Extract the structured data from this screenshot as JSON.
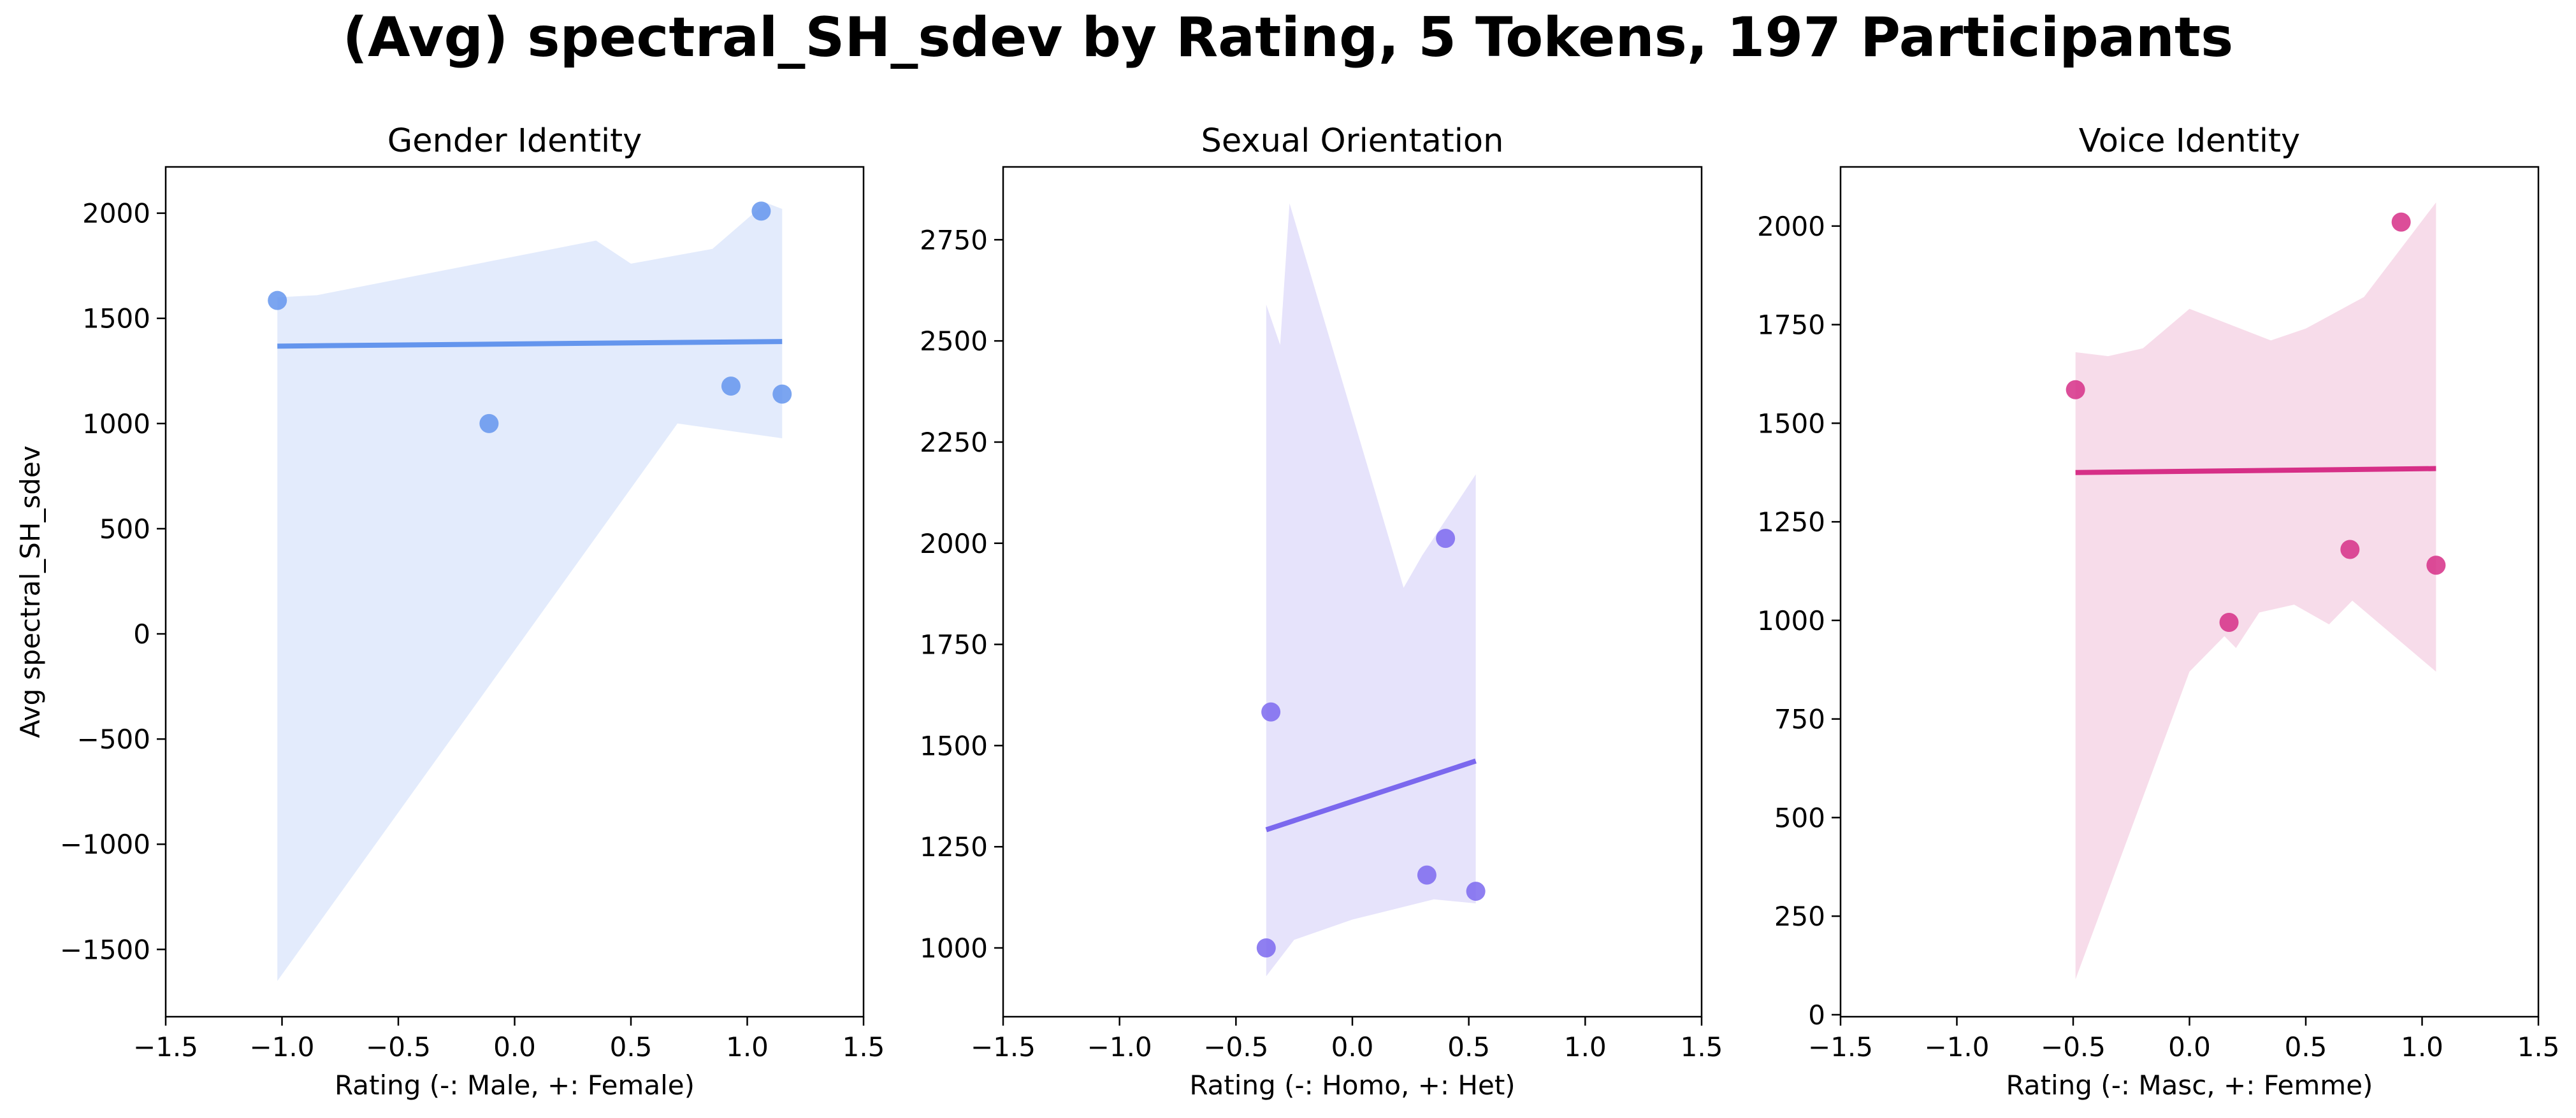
{
  "figure_title": "(Avg) spectral_SH_sdev by Rating, 5 Tokens, 197 Participants",
  "chart_data": [
    {
      "type": "scatter",
      "title": "Gender Identity",
      "xlabel": "Rating (-: Male, +: Female)",
      "ylabel": "Avg spectral_SH_sdev",
      "xlim": [
        -1.5,
        1.5
      ],
      "ylim": [
        -1820,
        2220
      ],
      "xticks": [
        -1.5,
        -1.0,
        -0.5,
        0.0,
        0.5,
        1.0,
        1.5
      ],
      "xtick_labels": [
        "−1.5",
        "−1.0",
        "−0.5",
        "0.0",
        "0.5",
        "1.0",
        "1.5"
      ],
      "yticks": [
        -1500,
        -1000,
        -500,
        0,
        500,
        1000,
        1500,
        2000
      ],
      "ytick_labels": [
        "−1500",
        "−1000",
        "−500",
        "0",
        "500",
        "1000",
        "1500",
        "2000"
      ],
      "color": "#6495ED",
      "band_color": "#e3ebfc",
      "points": [
        {
          "x": -1.02,
          "y": 1585
        },
        {
          "x": -0.11,
          "y": 1000
        },
        {
          "x": 0.93,
          "y": 1178
        },
        {
          "x": 1.06,
          "y": 2010
        },
        {
          "x": 1.15,
          "y": 1140
        }
      ],
      "fit_line": [
        {
          "x": -1.02,
          "y": 1368
        },
        {
          "x": 1.15,
          "y": 1390
        }
      ],
      "confidence_band": {
        "upper": [
          [
            -1.02,
            1600
          ],
          [
            -0.85,
            1610
          ],
          [
            0.35,
            1870
          ],
          [
            0.5,
            1760
          ],
          [
            0.6,
            1780
          ],
          [
            0.85,
            1830
          ],
          [
            1.08,
            2050
          ],
          [
            1.15,
            2020
          ]
        ],
        "lower": [
          [
            1.15,
            930
          ],
          [
            0.7,
            1000
          ],
          [
            -1.02,
            -1650
          ]
        ]
      }
    },
    {
      "type": "scatter",
      "title": "Sexual Orientation",
      "xlabel": "Rating (-: Homo, +: Het)",
      "ylabel": "",
      "xlim": [
        -1.5,
        1.5
      ],
      "ylim": [
        830,
        2930
      ],
      "xticks": [
        -1.5,
        -1.0,
        -0.5,
        0.0,
        0.5,
        1.0,
        1.5
      ],
      "xtick_labels": [
        "−1.5",
        "−1.0",
        "−0.5",
        "0.0",
        "0.5",
        "1.0",
        "1.5"
      ],
      "yticks": [
        1000,
        1250,
        1500,
        1750,
        2000,
        2250,
        2500,
        2750
      ],
      "ytick_labels": [
        "1000",
        "1250",
        "1500",
        "1750",
        "2000",
        "2250",
        "2500",
        "2750"
      ],
      "color": "#7B68EE",
      "band_color": "#e6e3fb",
      "points": [
        {
          "x": -0.37,
          "y": 1000
        },
        {
          "x": -0.35,
          "y": 1583
        },
        {
          "x": 0.32,
          "y": 1180
        },
        {
          "x": 0.4,
          "y": 2012
        },
        {
          "x": 0.53,
          "y": 1140
        }
      ],
      "fit_line": [
        {
          "x": -0.37,
          "y": 1292
        },
        {
          "x": 0.53,
          "y": 1462
        }
      ],
      "confidence_band": {
        "upper": [
          [
            -0.37,
            2590
          ],
          [
            -0.31,
            2490
          ],
          [
            -0.27,
            2840
          ],
          [
            0.22,
            1890
          ],
          [
            0.3,
            1970
          ],
          [
            0.53,
            2170
          ]
        ],
        "lower": [
          [
            0.53,
            1110
          ],
          [
            0.35,
            1120
          ],
          [
            0.0,
            1070
          ],
          [
            -0.25,
            1020
          ],
          [
            -0.37,
            930
          ]
        ]
      }
    },
    {
      "type": "scatter",
      "title": "Voice Identity",
      "xlabel": "Rating (-: Masc, +: Femme)",
      "ylabel": "",
      "xlim": [
        -1.5,
        1.5
      ],
      "ylim": [
        -5,
        2150
      ],
      "xticks": [
        -1.5,
        -1.0,
        -0.5,
        0.0,
        0.5,
        1.0,
        1.5
      ],
      "xtick_labels": [
        "−1.5",
        "−1.0",
        "−0.5",
        "0.0",
        "0.5",
        "1.0",
        "1.5"
      ],
      "yticks": [
        0,
        250,
        500,
        750,
        1000,
        1250,
        1500,
        1750,
        2000
      ],
      "ytick_labels": [
        "0",
        "250",
        "500",
        "750",
        "1000",
        "1250",
        "1500",
        "1750",
        "2000"
      ],
      "color": "#D62F87",
      "band_color": "#f7dcea",
      "points": [
        {
          "x": -0.49,
          "y": 1585
        },
        {
          "x": 0.17,
          "y": 995
        },
        {
          "x": 0.69,
          "y": 1180
        },
        {
          "x": 0.91,
          "y": 2010
        },
        {
          "x": 1.06,
          "y": 1140
        }
      ],
      "fit_line": [
        {
          "x": -0.49,
          "y": 1375
        },
        {
          "x": 1.06,
          "y": 1385
        }
      ],
      "confidence_band": {
        "upper": [
          [
            -0.49,
            1680
          ],
          [
            -0.35,
            1670
          ],
          [
            -0.2,
            1690
          ],
          [
            0.0,
            1790
          ],
          [
            0.35,
            1710
          ],
          [
            0.5,
            1740
          ],
          [
            0.75,
            1820
          ],
          [
            1.06,
            2060
          ]
        ],
        "lower": [
          [
            1.06,
            870
          ],
          [
            0.7,
            1050
          ],
          [
            0.6,
            990
          ],
          [
            0.45,
            1040
          ],
          [
            0.3,
            1020
          ],
          [
            0.2,
            930
          ],
          [
            0.15,
            960
          ],
          [
            0.0,
            870
          ],
          [
            -0.49,
            90
          ]
        ]
      }
    }
  ]
}
